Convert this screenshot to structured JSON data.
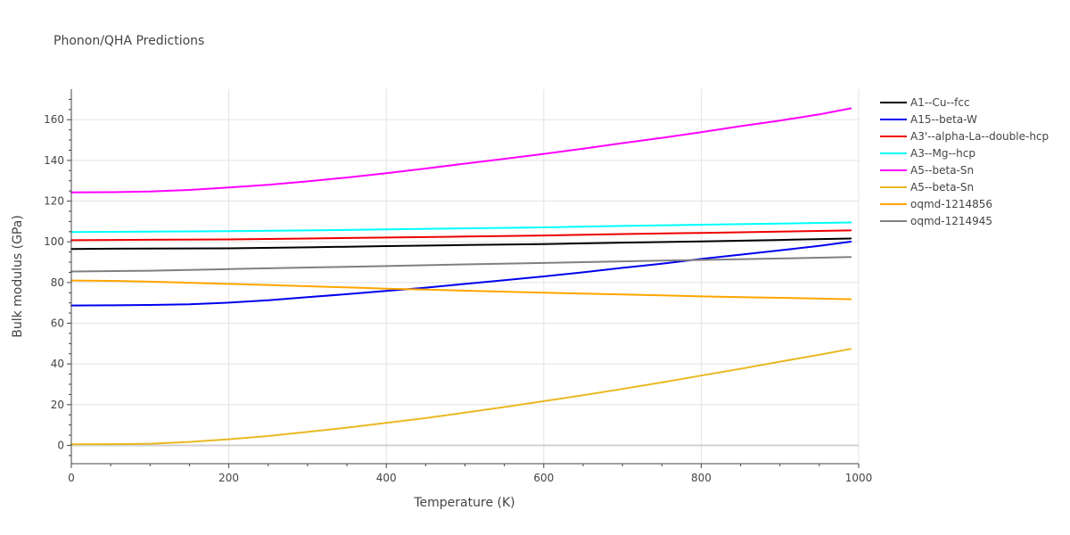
{
  "chart_data": {
    "type": "line",
    "title": "Phonon/QHA Predictions",
    "xlabel": "Temperature (K)",
    "ylabel": "Bulk modulus (GPa)",
    "xlim": [
      0,
      1000
    ],
    "ylim": [
      -9,
      175
    ],
    "xticks": [
      0,
      200,
      400,
      600,
      800,
      1000
    ],
    "yticks": [
      0,
      20,
      40,
      60,
      80,
      100,
      120,
      140,
      160
    ],
    "grid": true,
    "legend_position": "right",
    "series": [
      {
        "name": "A1--Cu--fcc",
        "color": "#000000",
        "x": [
          0,
          100,
          200,
          300,
          400,
          500,
          600,
          700,
          800,
          900,
          990
        ],
        "y": [
          96.5,
          96.7,
          96.8,
          97.3,
          97.9,
          98.4,
          98.9,
          99.6,
          100.2,
          100.9,
          101.6
        ]
      },
      {
        "name": "A15--beta-W",
        "color": "#0000ee",
        "x": [
          0,
          50,
          100,
          150,
          200,
          250,
          300,
          350,
          400,
          450,
          500,
          550,
          600,
          650,
          700,
          750,
          800,
          850,
          900,
          950,
          990
        ],
        "y": [
          68.7,
          68.8,
          69.0,
          69.3,
          70.1,
          71.3,
          72.8,
          74.3,
          75.9,
          77.5,
          79.3,
          81.1,
          83.0,
          85.0,
          87.2,
          89.2,
          91.6,
          93.7,
          95.8,
          98.0,
          100.1
        ]
      },
      {
        "name": "A3'--alpha-La--double-hcp",
        "color": "#ee0000",
        "x": [
          0,
          100,
          200,
          300,
          400,
          500,
          600,
          700,
          800,
          900,
          990
        ],
        "y": [
          100.8,
          101.0,
          101.2,
          101.6,
          102.1,
          102.6,
          103.1,
          103.8,
          104.4,
          105.0,
          105.6
        ]
      },
      {
        "name": "A3--Mg--hcp",
        "color": "#00ffff",
        "x": [
          0,
          100,
          200,
          300,
          400,
          500,
          600,
          700,
          800,
          900,
          990
        ],
        "y": [
          104.8,
          105.0,
          105.2,
          105.6,
          106.1,
          106.6,
          107.1,
          107.8,
          108.4,
          109.0,
          109.5
        ]
      },
      {
        "name": "A5--beta-Sn",
        "color": "#ff00ff",
        "x": [
          0,
          50,
          100,
          150,
          200,
          250,
          300,
          350,
          400,
          450,
          500,
          550,
          600,
          650,
          700,
          750,
          800,
          850,
          900,
          950,
          990
        ],
        "y": [
          124.3,
          124.4,
          124.7,
          125.5,
          126.7,
          128.0,
          129.7,
          131.6,
          133.7,
          136.0,
          138.4,
          140.8,
          143.2,
          145.8,
          148.5,
          151.1,
          153.9,
          156.8,
          159.6,
          162.6,
          165.6
        ]
      },
      {
        "name": "A5--beta-Sn",
        "color": "#e8b923",
        "x": [
          0,
          50,
          100,
          150,
          200,
          250,
          300,
          350,
          400,
          450,
          500,
          550,
          600,
          650,
          700,
          750,
          800,
          850,
          900,
          950,
          990
        ],
        "y": [
          0.5,
          0.6,
          0.8,
          1.7,
          3.0,
          4.6,
          6.6,
          8.7,
          11.0,
          13.4,
          16.1,
          18.8,
          21.7,
          24.6,
          27.7,
          30.9,
          34.3,
          37.6,
          41.1,
          44.5,
          47.4
        ]
      },
      {
        "name": "oqmd-1214856",
        "color": "#ffa500",
        "x": [
          0,
          50,
          100,
          150,
          200,
          250,
          300,
          350,
          400,
          450,
          500,
          550,
          600,
          650,
          700,
          750,
          800,
          850,
          900,
          950,
          990
        ],
        "y": [
          81.0,
          80.8,
          80.4,
          79.9,
          79.3,
          78.8,
          78.2,
          77.6,
          77.0,
          76.5,
          76.0,
          75.5,
          75.0,
          74.6,
          74.1,
          73.7,
          73.2,
          72.8,
          72.5,
          72.1,
          71.8
        ]
      },
      {
        "name": "oqmd-1214945",
        "color": "#808080",
        "x": [
          0,
          100,
          200,
          300,
          400,
          500,
          600,
          700,
          800,
          900,
          990
        ],
        "y": [
          85.4,
          85.8,
          86.6,
          87.4,
          88.1,
          88.9,
          89.6,
          90.4,
          91.1,
          91.8,
          92.5
        ]
      }
    ]
  }
}
